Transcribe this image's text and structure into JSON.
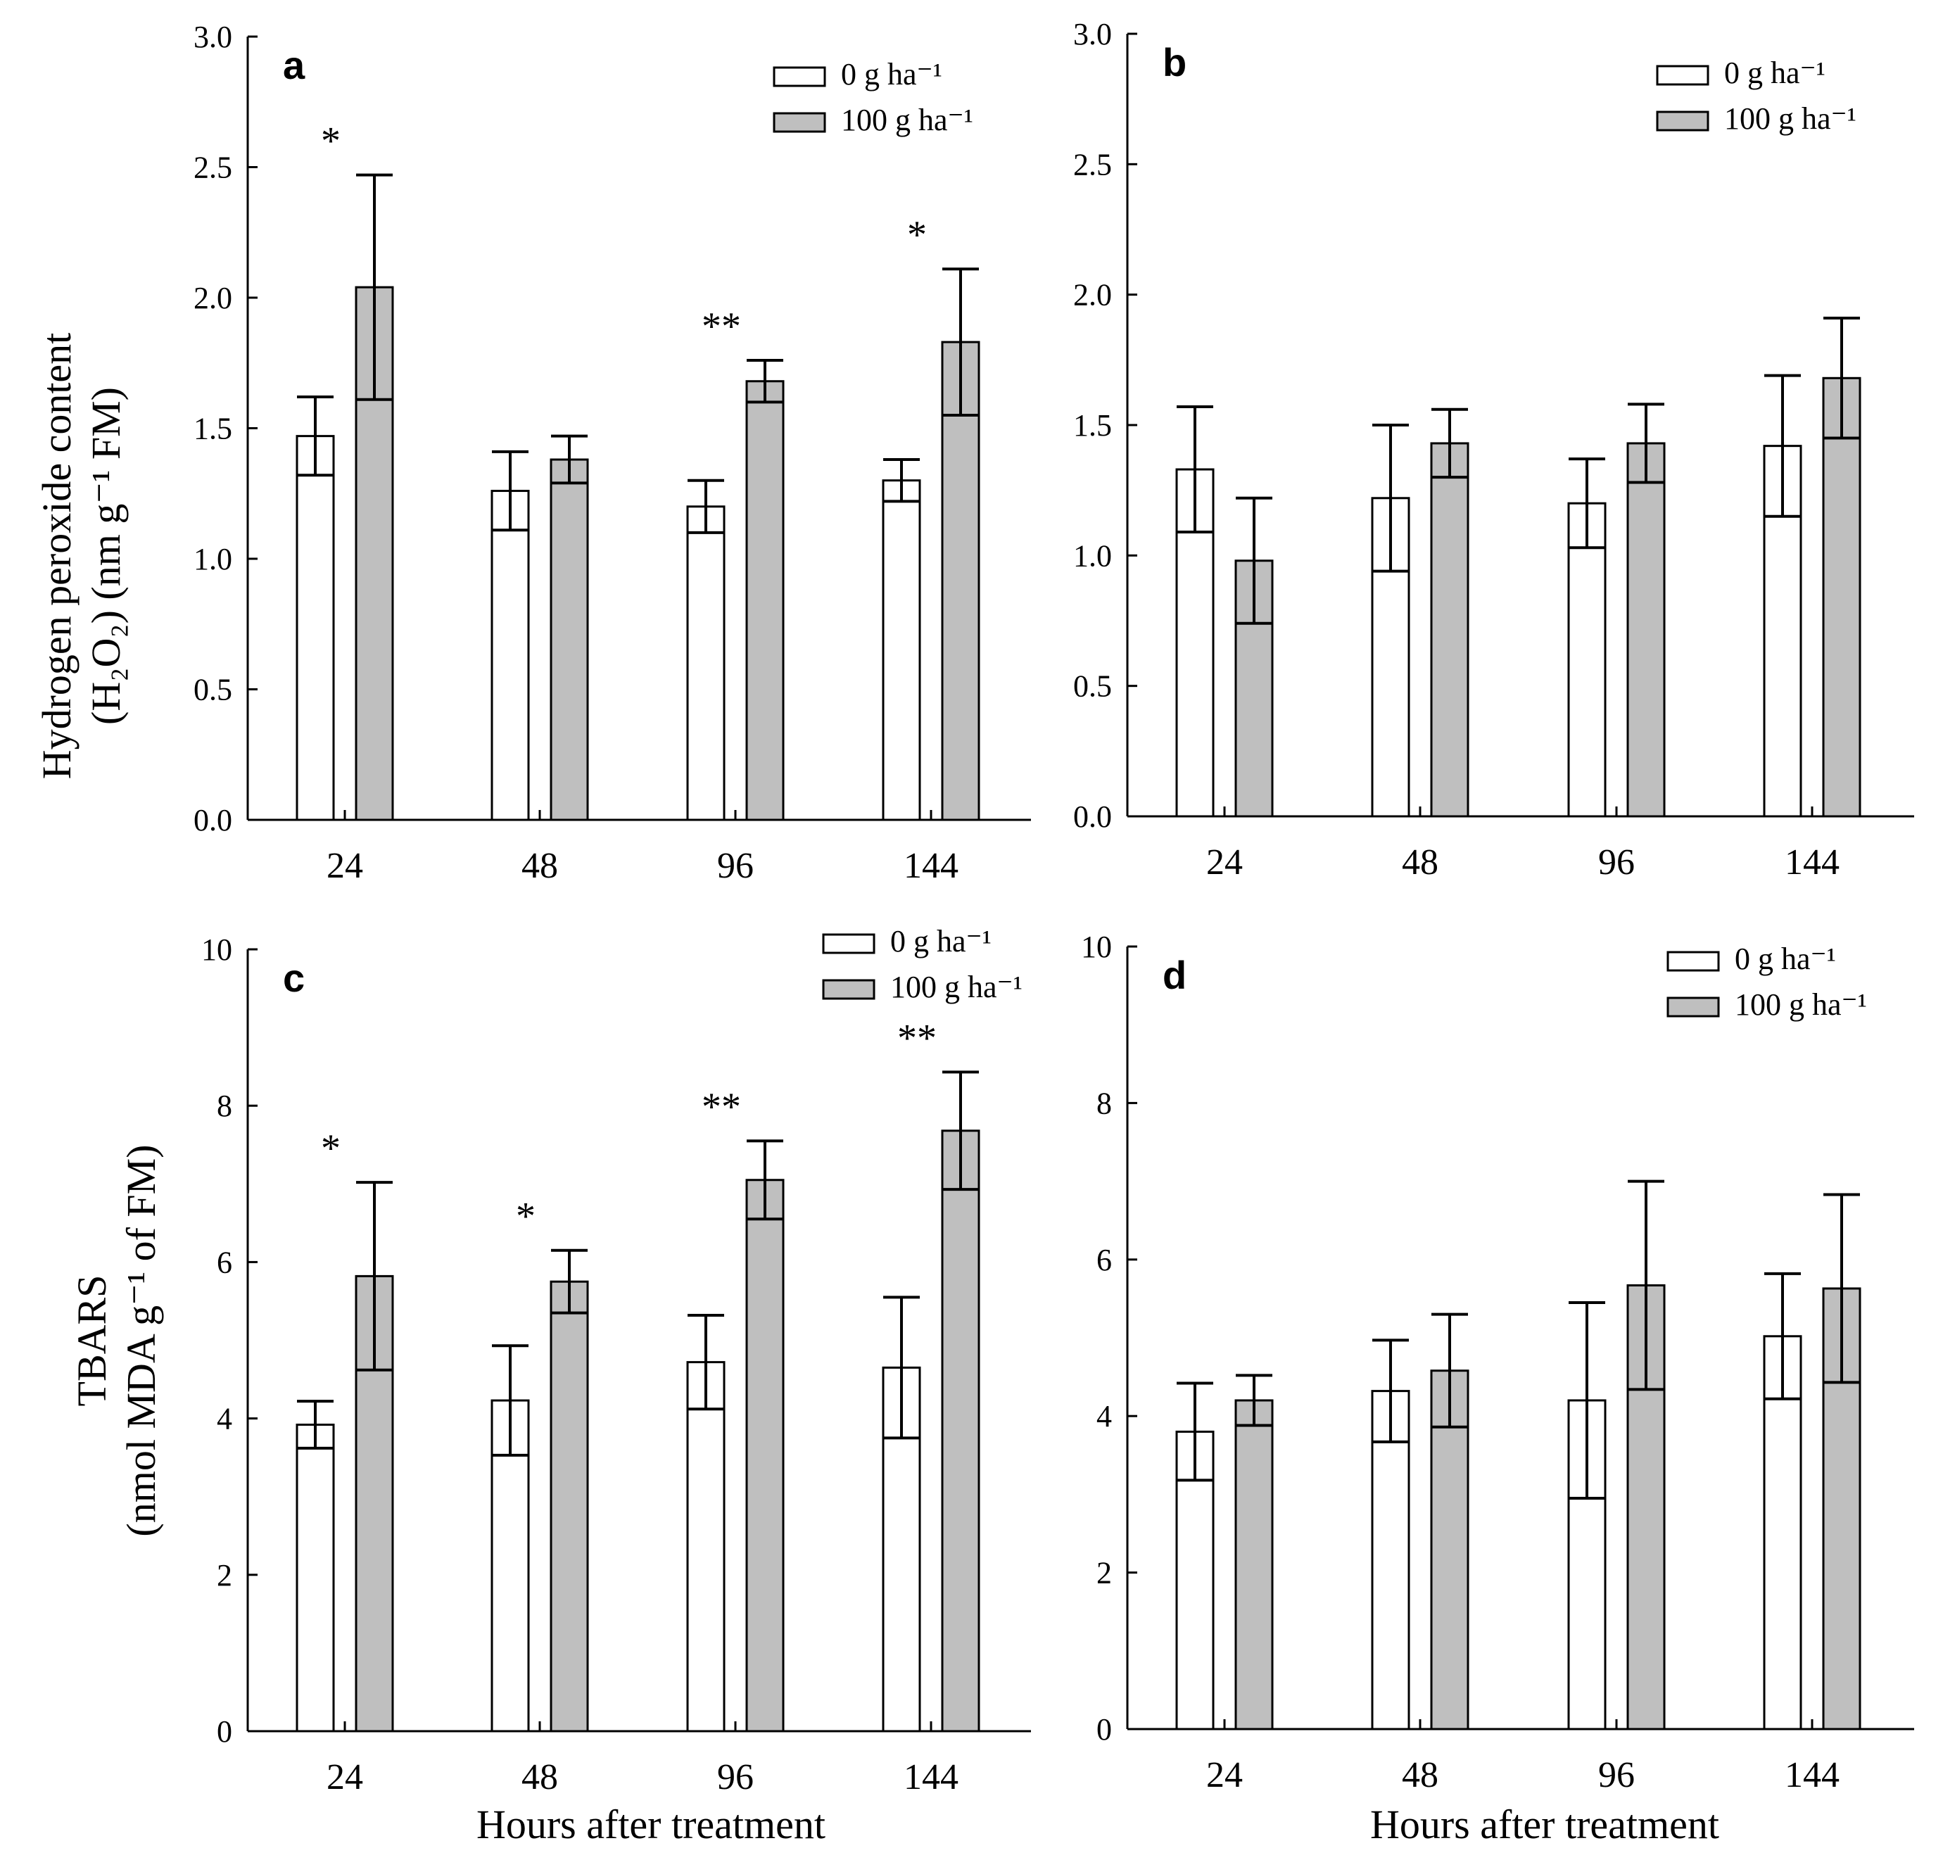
{
  "colors": {
    "control_fill": "#ffffff",
    "treated_fill": "#bfbfbf",
    "stroke": "#000000"
  },
  "xlabel": "Hours after treatment",
  "ylabels": {
    "top": [
      "Hydrogen peroxide content",
      "(H₂O₂) (nm g⁻¹ FM)"
    ],
    "bottom": [
      "TBARS",
      "(nmol MDA g⁻¹ of FM)"
    ]
  },
  "chart_data": [
    {
      "type": "bar",
      "panel": "a",
      "categories": [
        "24",
        "48",
        "96",
        "144"
      ],
      "ylim": [
        0,
        3.0
      ],
      "yticks": [
        "0.0",
        "0.5",
        "1.0",
        "1.5",
        "2.0",
        "2.5",
        "3.0"
      ],
      "legend": [
        "0 g ha⁻¹",
        "100 g ha⁻¹"
      ],
      "series": [
        {
          "name": "0 g ha⁻¹",
          "values": [
            1.47,
            1.26,
            1.2,
            1.3
          ],
          "errors": [
            0.15,
            0.15,
            0.1,
            0.08
          ]
        },
        {
          "name": "100 g ha⁻¹",
          "values": [
            2.04,
            1.38,
            1.68,
            1.83
          ],
          "errors": [
            0.43,
            0.09,
            0.08,
            0.28
          ]
        }
      ],
      "significance": [
        "*",
        "",
        "**",
        "*"
      ]
    },
    {
      "type": "bar",
      "panel": "b",
      "categories": [
        "24",
        "48",
        "96",
        "144"
      ],
      "ylim": [
        0,
        3.0
      ],
      "yticks": [
        "0.0",
        "0.5",
        "1.0",
        "1.5",
        "2.0",
        "2.5",
        "3.0"
      ],
      "legend": [
        "0 g ha⁻¹",
        "100 g ha⁻¹"
      ],
      "series": [
        {
          "name": "0 g ha⁻¹",
          "values": [
            1.33,
            1.22,
            1.2,
            1.42
          ],
          "errors": [
            0.24,
            0.28,
            0.17,
            0.27
          ]
        },
        {
          "name": "100 g ha⁻¹",
          "values": [
            0.98,
            1.43,
            1.43,
            1.68
          ],
          "errors": [
            0.24,
            0.13,
            0.15,
            0.23
          ]
        }
      ],
      "significance": [
        "",
        "",
        "",
        ""
      ]
    },
    {
      "type": "bar",
      "panel": "c",
      "categories": [
        "24",
        "48",
        "96",
        "144"
      ],
      "ylim": [
        0,
        10
      ],
      "yticks": [
        "0",
        "2",
        "4",
        "6",
        "8",
        "10"
      ],
      "legend": [
        "0 g ha⁻¹",
        "100 g ha⁻¹"
      ],
      "series": [
        {
          "name": "0 g ha⁻¹",
          "values": [
            3.92,
            4.23,
            4.72,
            4.65
          ],
          "errors": [
            0.3,
            0.7,
            0.6,
            0.9
          ]
        },
        {
          "name": "100 g ha⁻¹",
          "values": [
            5.82,
            5.75,
            7.05,
            7.68
          ],
          "errors": [
            1.2,
            0.4,
            0.5,
            0.75
          ]
        }
      ],
      "significance": [
        "*",
        "*",
        "**",
        "**"
      ]
    },
    {
      "type": "bar",
      "panel": "d",
      "categories": [
        "24",
        "48",
        "96",
        "144"
      ],
      "ylim": [
        0,
        10
      ],
      "yticks": [
        "0",
        "2",
        "4",
        "6",
        "8",
        "10"
      ],
      "legend": [
        "0 g ha⁻¹",
        "100 g ha⁻¹"
      ],
      "series": [
        {
          "name": "0 g ha⁻¹",
          "values": [
            3.8,
            4.32,
            4.2,
            5.02
          ],
          "errors": [
            0.62,
            0.65,
            1.25,
            0.8
          ]
        },
        {
          "name": "100 g ha⁻¹",
          "values": [
            4.2,
            4.58,
            5.67,
            5.63
          ],
          "errors": [
            0.32,
            0.72,
            1.33,
            1.2
          ]
        }
      ],
      "significance": [
        "",
        "",
        "",
        ""
      ]
    }
  ]
}
